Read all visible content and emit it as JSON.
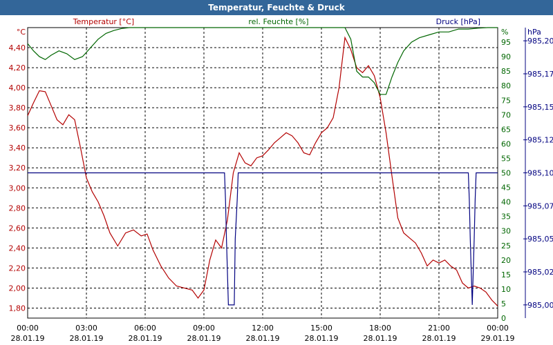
{
  "window": {
    "title": "Temperatur, Feuchte & Druck"
  },
  "chart_data": {
    "type": "line",
    "title": "Temperatur, Feuchte & Druck",
    "x_ticks": [
      {
        "time": "00:00",
        "date": "28.01.19"
      },
      {
        "time": "03:00",
        "date": "28.01.19"
      },
      {
        "time": "06:00",
        "date": "28.01.19"
      },
      {
        "time": "09:00",
        "date": "28.01.19"
      },
      {
        "time": "12:00",
        "date": "28.01.19"
      },
      {
        "time": "15:00",
        "date": "28.01.19"
      },
      {
        "time": "18:00",
        "date": "28.01.19"
      },
      {
        "time": "21:00",
        "date": "28.01.19"
      },
      {
        "time": "00:00",
        "date": "29.01.19"
      }
    ],
    "xlim": [
      0,
      24
    ],
    "grid": true,
    "axes": {
      "left": {
        "label": "Temperatur [°C]",
        "unit": "°C",
        "ylim": [
          1.7,
          4.6
        ],
        "ticks": [
          "1,80",
          "2,00",
          "2,20",
          "2,40",
          "2,60",
          "2,80",
          "3,00",
          "3,20",
          "3,40",
          "3,60",
          "3,80",
          "4,00",
          "4,20",
          "4,40"
        ],
        "tick_values": [
          1.8,
          2.0,
          2.2,
          2.4,
          2.6,
          2.8,
          3.0,
          3.2,
          3.4,
          3.6,
          3.8,
          4.0,
          4.2,
          4.4
        ],
        "color": "#b30000"
      },
      "middle": {
        "label": "rel. Feuchte [%]",
        "unit": "%",
        "ylim": [
          0,
          100
        ],
        "ticks": [
          "0",
          "5",
          "10",
          "15",
          "20",
          "25",
          "30",
          "35",
          "40",
          "45",
          "50",
          "55",
          "60",
          "65",
          "70",
          "75",
          "80",
          "85",
          "90",
          "95"
        ],
        "tick_values": [
          0,
          5,
          10,
          15,
          20,
          25,
          30,
          35,
          40,
          45,
          50,
          55,
          60,
          65,
          70,
          75,
          80,
          85,
          90,
          95
        ],
        "color": "#006600"
      },
      "right": {
        "label": "Druck [hPa]",
        "unit": "hPa",
        "ylim": [
          984.99,
          985.21
        ],
        "ticks": [
          "985,00",
          "985,02",
          "985,05",
          "985,07",
          "985,10",
          "985,12",
          "985,15",
          "985,17",
          "985,20"
        ],
        "tick_values": [
          985.0,
          985.025,
          985.05,
          985.075,
          985.1,
          985.125,
          985.15,
          985.175,
          985.2
        ],
        "color": "#000080"
      }
    },
    "series": [
      {
        "name": "Temperatur [°C]",
        "axis": "left",
        "color": "#b30000",
        "x": [
          0,
          0.3,
          0.6,
          0.9,
          1.2,
          1.5,
          1.8,
          2.1,
          2.4,
          2.7,
          3.0,
          3.3,
          3.6,
          3.9,
          4.2,
          4.6,
          5.0,
          5.4,
          5.8,
          6.1,
          6.4,
          6.8,
          7.2,
          7.6,
          8.0,
          8.4,
          8.7,
          9.0,
          9.3,
          9.6,
          9.9,
          10.2,
          10.5,
          10.8,
          11.1,
          11.4,
          11.7,
          12.0,
          12.3,
          12.6,
          12.9,
          13.2,
          13.5,
          13.8,
          14.1,
          14.4,
          14.7,
          15.0,
          15.3,
          15.6,
          15.9,
          16.2,
          16.5,
          16.8,
          17.1,
          17.4,
          17.7,
          18.0,
          18.3,
          18.6,
          18.9,
          19.2,
          19.5,
          19.8,
          20.1,
          20.4,
          20.7,
          21.0,
          21.3,
          21.6,
          21.9,
          22.2,
          22.5,
          22.8,
          23.1,
          23.4,
          23.7,
          24.0
        ],
        "y": [
          3.72,
          3.85,
          3.97,
          3.96,
          3.82,
          3.68,
          3.63,
          3.73,
          3.68,
          3.4,
          3.1,
          2.96,
          2.86,
          2.72,
          2.55,
          2.42,
          2.55,
          2.58,
          2.52,
          2.54,
          2.38,
          2.22,
          2.1,
          2.02,
          2.0,
          1.98,
          1.9,
          1.98,
          2.28,
          2.48,
          2.4,
          2.68,
          3.15,
          3.35,
          3.25,
          3.22,
          3.3,
          3.32,
          3.38,
          3.45,
          3.5,
          3.55,
          3.52,
          3.45,
          3.35,
          3.33,
          3.45,
          3.55,
          3.6,
          3.7,
          4.0,
          4.5,
          4.38,
          4.2,
          4.15,
          4.22,
          4.12,
          3.9,
          3.55,
          3.12,
          2.7,
          2.55,
          2.5,
          2.45,
          2.35,
          2.22,
          2.28,
          2.25,
          2.28,
          2.22,
          2.18,
          2.05,
          2.0,
          2.02,
          2.0,
          1.96,
          1.88,
          1.82
        ]
      },
      {
        "name": "rel. Feuchte [%]",
        "axis": "middle",
        "color": "#006600",
        "x": [
          0,
          0.3,
          0.6,
          0.9,
          1.2,
          1.6,
          2.0,
          2.4,
          2.8,
          3.2,
          3.6,
          4.0,
          4.4,
          4.8,
          5.2,
          6.0,
          8.0,
          10.0,
          12.0,
          14.0,
          15.5,
          15.9,
          16.2,
          16.5,
          16.8,
          17.1,
          17.4,
          17.7,
          18.0,
          18.3,
          18.6,
          18.9,
          19.2,
          19.6,
          20.0,
          20.5,
          21.0,
          21.5,
          22.0,
          22.5,
          23.0,
          23.5,
          24.0
        ],
        "y": [
          94.5,
          92,
          90,
          89,
          90.5,
          92,
          91,
          89,
          90,
          93,
          96,
          98,
          99,
          99.7,
          100,
          100,
          100,
          100,
          100,
          100,
          100,
          100,
          100,
          96,
          85,
          83,
          83,
          81,
          77,
          77,
          83,
          88,
          92,
          95,
          96.5,
          97.5,
          98.5,
          98.5,
          99.5,
          99.5,
          99.8,
          100,
          100
        ]
      },
      {
        "name": "Druck [hPa]",
        "axis": "right",
        "color": "#000080",
        "x": [
          0,
          10.05,
          10.1,
          10.15,
          10.25,
          10.35,
          10.5,
          10.55,
          10.6,
          10.7,
          10.75,
          22.45,
          22.5,
          22.55,
          22.6,
          22.7,
          22.8,
          22.85,
          22.9,
          24.0
        ],
        "y": [
          985.1,
          985.1,
          985.08,
          985.05,
          985.0,
          985.0,
          985.0,
          985.0,
          985.05,
          985.08,
          985.1,
          985.1,
          985.1,
          985.08,
          985.05,
          985.0,
          985.05,
          985.08,
          985.1,
          985.1
        ]
      }
    ]
  }
}
